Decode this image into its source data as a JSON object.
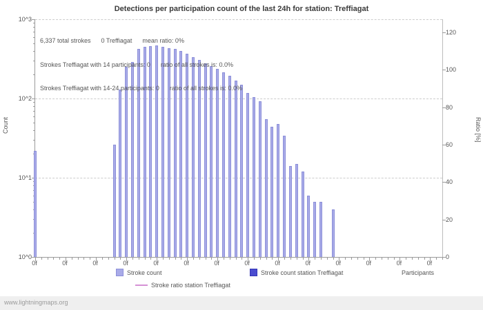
{
  "title": "Detections per participation count of the last 24h for station: Treffiagat",
  "watermark": "www.lightningmaps.org",
  "annotations": {
    "line1": "6,337 total strokes      0 Treffiagat      mean ratio: 0%",
    "line2": "Strokes Treffiagat with 14 participants: 0      ratio of all strokes is: 0.0%",
    "line3": "Strokes Treffiagat with 14-24 participants: 0      ratio of all strokes is: 0.0%"
  },
  "axes": {
    "y_left_label": "Count",
    "y_right_label": "Ratio [%]",
    "x_label": "Participants",
    "y_left_ticks": [
      {
        "label": "10^3",
        "decade": 3
      },
      {
        "label": "10^2",
        "decade": 2
      },
      {
        "label": "10^1",
        "decade": 1
      },
      {
        "label": "10^0",
        "decade": 0
      }
    ],
    "y_right_ticks": [
      120,
      100,
      80,
      60,
      40,
      20,
      0
    ],
    "x_tick_labels": [
      "0f",
      "0f",
      "0f",
      "0f",
      "0f",
      "0f",
      "0f",
      "0f",
      "0f",
      "0f",
      "0f",
      "0f",
      "0f",
      "0f"
    ],
    "x_tick_step": 5
  },
  "legend": {
    "stroke_count": {
      "label": "Stroke count",
      "color": "#a9abe8"
    },
    "station_count": {
      "label": "Stroke count station Treffiagat",
      "color": "#4a4cd0"
    },
    "station_ratio": {
      "label": "Stroke ratio station Treffiagat",
      "color": "#d590d5"
    }
  },
  "chart_data": {
    "type": "bar",
    "title": "Detections per participation count of the last 24h for station: Treffiagat",
    "xlabel": "Participants",
    "ylabel_left": "Count",
    "ylabel_right": "Ratio [%]",
    "y_left_scale": "log",
    "y_left_ticks": [
      "10^0",
      "10^1",
      "10^2",
      "10^3"
    ],
    "y_right_range": [
      0,
      120
    ],
    "x_range": [
      0,
      67
    ],
    "grid": "dashed-horizontal",
    "legend_position": "bottom",
    "series": [
      {
        "name": "Stroke count",
        "type": "bar",
        "color": "#a9abe8",
        "points": [
          [
            0,
            22
          ],
          [
            13,
            26
          ],
          [
            14,
            130
          ],
          [
            15,
            250
          ],
          [
            16,
            290
          ],
          [
            17,
            420
          ],
          [
            18,
            450
          ],
          [
            19,
            455
          ],
          [
            20,
            465
          ],
          [
            21,
            450
          ],
          [
            22,
            435
          ],
          [
            23,
            420
          ],
          [
            24,
            395
          ],
          [
            25,
            365
          ],
          [
            26,
            335
          ],
          [
            27,
            305
          ],
          [
            28,
            280
          ],
          [
            29,
            255
          ],
          [
            30,
            235
          ],
          [
            31,
            215
          ],
          [
            32,
            195
          ],
          [
            33,
            170
          ],
          [
            34,
            148
          ],
          [
            35,
            118
          ],
          [
            36,
            105
          ],
          [
            37,
            92
          ],
          [
            38,
            55
          ],
          [
            39,
            44
          ],
          [
            40,
            48
          ],
          [
            41,
            34
          ],
          [
            42,
            14
          ],
          [
            43,
            15
          ],
          [
            44,
            12
          ],
          [
            45,
            6
          ],
          [
            46,
            5
          ],
          [
            47,
            5
          ],
          [
            49,
            4
          ]
        ]
      },
      {
        "name": "Stroke count station Treffiagat",
        "type": "bar",
        "color": "#4a4cd0",
        "constant_value": 0
      },
      {
        "name": "Stroke ratio station Treffiagat",
        "type": "line",
        "color": "#d590d5",
        "constant_value_percent": 0
      }
    ],
    "stats": {
      "total_strokes": "6,337",
      "station_strokes": 0,
      "mean_ratio_percent": 0
    }
  }
}
